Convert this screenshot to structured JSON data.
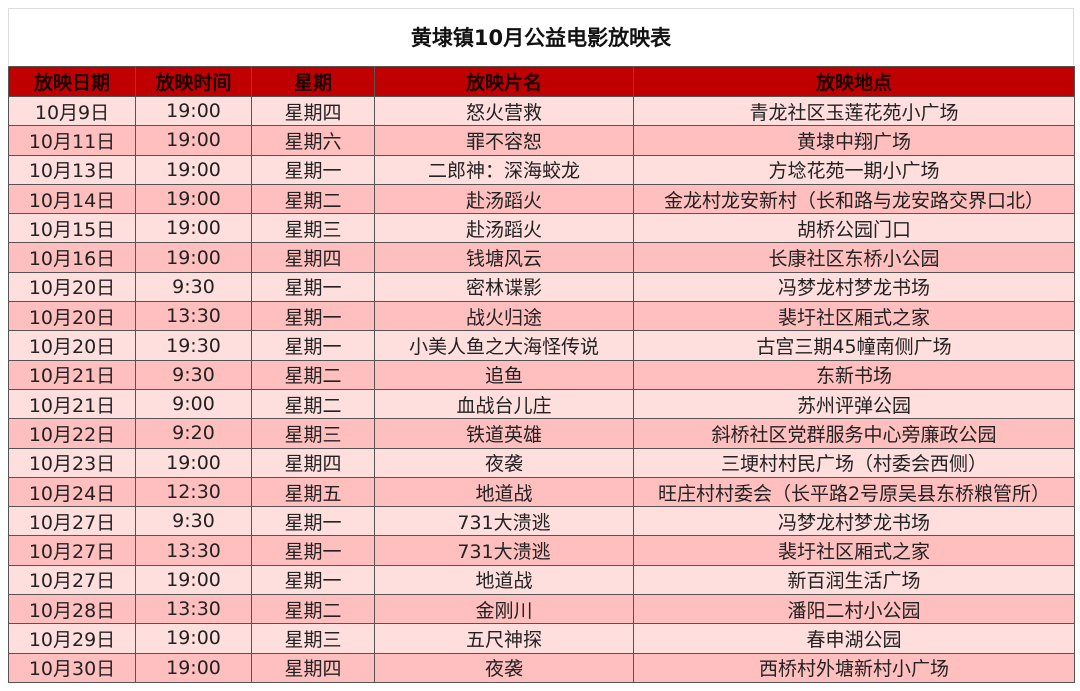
{
  "title": "黄埭镇10月公益电影放映表",
  "colors": {
    "header_bg": "#c00000",
    "row_light": "#ffdede",
    "row_dark": "#ffbfbf"
  },
  "columns": [
    "放映日期",
    "放映时间",
    "星期",
    "放映片名",
    "放映地点"
  ],
  "rows": [
    [
      "10月9日",
      "19:00",
      "星期四",
      "怒火营救",
      "青龙社区玉莲花苑小广场"
    ],
    [
      "10月11日",
      "19:00",
      "星期六",
      "罪不容恕",
      "黄埭中翔广场"
    ],
    [
      "10月13日",
      "19:00",
      "星期一",
      "二郎神：深海蛟龙",
      "方埝花苑一期小广场"
    ],
    [
      "10月14日",
      "19:00",
      "星期二",
      "赴汤蹈火",
      "金龙村龙安新村（长和路与龙安路交界口北）"
    ],
    [
      "10月15日",
      "19:00",
      "星期三",
      "赴汤蹈火",
      "胡桥公园门口"
    ],
    [
      "10月16日",
      "19:00",
      "星期四",
      "钱塘风云",
      "长康社区东桥小公园"
    ],
    [
      "10月20日",
      "9:30",
      "星期一",
      "密林谍影",
      "冯梦龙村梦龙书场"
    ],
    [
      "10月20日",
      "13:30",
      "星期一",
      "战火归途",
      "裴圩社区厢式之家"
    ],
    [
      "10月20日",
      "19:30",
      "星期一",
      "小美人鱼之大海怪传说",
      "古宫三期45幢南侧广场"
    ],
    [
      "10月21日",
      "9:30",
      "星期二",
      "追鱼",
      "东新书场"
    ],
    [
      "10月21日",
      "9:00",
      "星期二",
      "血战台儿庄",
      "苏州评弹公园"
    ],
    [
      "10月22日",
      "9:20",
      "星期三",
      "铁道英雄",
      "斜桥社区党群服务中心旁廉政公园"
    ],
    [
      "10月23日",
      "19:00",
      "星期四",
      "夜袭",
      "三埂村村民广场（村委会西侧）"
    ],
    [
      "10月24日",
      "12:30",
      "星期五",
      "地道战",
      "旺庄村村委会（长平路2号原吴县东桥粮管所）"
    ],
    [
      "10月27日",
      "9:30",
      "星期一",
      "731大溃逃",
      "冯梦龙村梦龙书场"
    ],
    [
      "10月27日",
      "13:30",
      "星期一",
      "731大溃逃",
      "裴圩社区厢式之家"
    ],
    [
      "10月27日",
      "19:00",
      "星期一",
      "地道战",
      "新百润生活广场"
    ],
    [
      "10月28日",
      "13:30",
      "星期二",
      "金刚川",
      "潘阳二村小公园"
    ],
    [
      "10月29日",
      "19:00",
      "星期三",
      "五尺神探",
      "春申湖公园"
    ],
    [
      "10月30日",
      "19:00",
      "星期四",
      "夜袭",
      "西桥村外塘新村小广场"
    ]
  ]
}
